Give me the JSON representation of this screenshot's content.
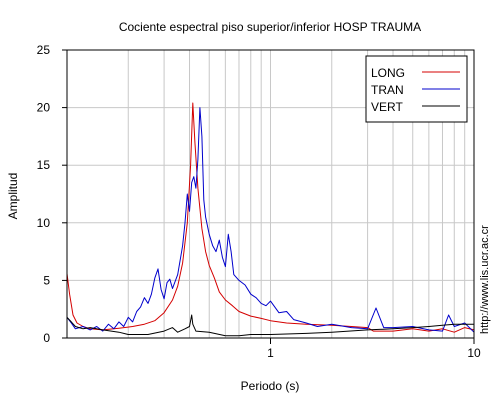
{
  "chart_data": {
    "type": "line",
    "title": "Cociente espectral piso superior/inferior  HOSP TRAUMA",
    "xlabel": "Periodo (s)",
    "ylabel": "Amplitud",
    "x_scale": "log",
    "xlim": [
      0.1,
      10
    ],
    "ylim": [
      0,
      25
    ],
    "grid": true,
    "legend_position": "top-right",
    "x_ticks": [
      {
        "value": 1,
        "label": "1"
      },
      {
        "value": 10,
        "label": "10"
      }
    ],
    "y_ticks": [
      {
        "value": 0,
        "label": "0"
      },
      {
        "value": 5,
        "label": "5"
      },
      {
        "value": 10,
        "label": "10"
      },
      {
        "value": 15,
        "label": "15"
      },
      {
        "value": 20,
        "label": "20"
      },
      {
        "value": 25,
        "label": "25"
      }
    ],
    "series": [
      {
        "name": "LONG",
        "color": "#d40000",
        "points": [
          [
            0.1,
            5.6
          ],
          [
            0.103,
            3.8
          ],
          [
            0.107,
            2.0
          ],
          [
            0.112,
            1.3
          ],
          [
            0.12,
            1.0
          ],
          [
            0.13,
            0.8
          ],
          [
            0.15,
            0.7
          ],
          [
            0.18,
            0.85
          ],
          [
            0.21,
            1.0
          ],
          [
            0.24,
            1.2
          ],
          [
            0.27,
            1.5
          ],
          [
            0.3,
            2.2
          ],
          [
            0.33,
            3.3
          ],
          [
            0.35,
            4.5
          ],
          [
            0.37,
            6.5
          ],
          [
            0.39,
            10.0
          ],
          [
            0.405,
            15.0
          ],
          [
            0.415,
            20.4
          ],
          [
            0.425,
            17.0
          ],
          [
            0.44,
            13.0
          ],
          [
            0.46,
            9.5
          ],
          [
            0.48,
            7.5
          ],
          [
            0.5,
            6.3
          ],
          [
            0.53,
            5.2
          ],
          [
            0.56,
            4.0
          ],
          [
            0.6,
            3.3
          ],
          [
            0.65,
            2.8
          ],
          [
            0.7,
            2.3
          ],
          [
            0.8,
            1.9
          ],
          [
            0.9,
            1.7
          ],
          [
            1.0,
            1.5
          ],
          [
            1.2,
            1.3
          ],
          [
            1.5,
            1.2
          ],
          [
            2.0,
            1.1
          ],
          [
            2.5,
            1.0
          ],
          [
            3.0,
            0.9
          ],
          [
            3.2,
            0.6
          ],
          [
            4.0,
            0.6
          ],
          [
            5.0,
            0.8
          ],
          [
            6.0,
            0.6
          ],
          [
            7.0,
            0.8
          ],
          [
            8.0,
            0.5
          ],
          [
            9.0,
            0.9
          ],
          [
            10.0,
            0.7
          ]
        ]
      },
      {
        "name": "TRAN",
        "color": "#0000cc",
        "points": [
          [
            0.1,
            1.8
          ],
          [
            0.105,
            1.3
          ],
          [
            0.11,
            0.8
          ],
          [
            0.12,
            1.0
          ],
          [
            0.13,
            0.7
          ],
          [
            0.14,
            1.0
          ],
          [
            0.15,
            0.6
          ],
          [
            0.16,
            1.2
          ],
          [
            0.17,
            0.8
          ],
          [
            0.18,
            1.4
          ],
          [
            0.19,
            1.0
          ],
          [
            0.2,
            1.8
          ],
          [
            0.21,
            1.4
          ],
          [
            0.22,
            2.3
          ],
          [
            0.23,
            2.7
          ],
          [
            0.24,
            3.5
          ],
          [
            0.25,
            3.0
          ],
          [
            0.26,
            3.8
          ],
          [
            0.27,
            5.2
          ],
          [
            0.28,
            6.0
          ],
          [
            0.29,
            4.2
          ],
          [
            0.3,
            3.4
          ],
          [
            0.31,
            4.8
          ],
          [
            0.32,
            5.1
          ],
          [
            0.33,
            4.3
          ],
          [
            0.35,
            5.5
          ],
          [
            0.37,
            8.0
          ],
          [
            0.38,
            10.0
          ],
          [
            0.39,
            12.5
          ],
          [
            0.4,
            11.0
          ],
          [
            0.41,
            13.5
          ],
          [
            0.42,
            14.0
          ],
          [
            0.43,
            13.0
          ],
          [
            0.44,
            15.5
          ],
          [
            0.45,
            20.0
          ],
          [
            0.46,
            17.5
          ],
          [
            0.47,
            12.0
          ],
          [
            0.48,
            10.5
          ],
          [
            0.5,
            9.0
          ],
          [
            0.52,
            8.0
          ],
          [
            0.54,
            7.5
          ],
          [
            0.56,
            8.5
          ],
          [
            0.58,
            7.0
          ],
          [
            0.6,
            6.2
          ],
          [
            0.62,
            9.0
          ],
          [
            0.64,
            7.5
          ],
          [
            0.66,
            5.5
          ],
          [
            0.7,
            5.0
          ],
          [
            0.75,
            4.6
          ],
          [
            0.8,
            3.8
          ],
          [
            0.85,
            3.5
          ],
          [
            0.9,
            3.0
          ],
          [
            0.95,
            2.8
          ],
          [
            1.0,
            3.2
          ],
          [
            1.1,
            2.2
          ],
          [
            1.2,
            2.3
          ],
          [
            1.3,
            1.6
          ],
          [
            1.5,
            1.3
          ],
          [
            1.7,
            1.0
          ],
          [
            2.0,
            1.2
          ],
          [
            2.5,
            0.9
          ],
          [
            3.0,
            0.8
          ],
          [
            3.3,
            2.6
          ],
          [
            3.6,
            0.9
          ],
          [
            4.0,
            0.9
          ],
          [
            5.0,
            1.0
          ],
          [
            6.0,
            0.7
          ],
          [
            7.0,
            0.6
          ],
          [
            7.5,
            2.0
          ],
          [
            8.0,
            1.0
          ],
          [
            9.0,
            1.3
          ],
          [
            10.0,
            0.5
          ]
        ]
      },
      {
        "name": "VERT",
        "color": "#000000",
        "points": [
          [
            0.1,
            1.8
          ],
          [
            0.105,
            1.4
          ],
          [
            0.11,
            1.0
          ],
          [
            0.12,
            0.8
          ],
          [
            0.13,
            0.9
          ],
          [
            0.15,
            0.7
          ],
          [
            0.18,
            0.5
          ],
          [
            0.2,
            0.3
          ],
          [
            0.25,
            0.3
          ],
          [
            0.3,
            0.6
          ],
          [
            0.33,
            0.9
          ],
          [
            0.35,
            0.5
          ],
          [
            0.38,
            0.8
          ],
          [
            0.4,
            1.0
          ],
          [
            0.41,
            2.0
          ],
          [
            0.415,
            1.2
          ],
          [
            0.43,
            0.6
          ],
          [
            0.5,
            0.5
          ],
          [
            0.6,
            0.2
          ],
          [
            0.7,
            0.2
          ],
          [
            0.8,
            0.3
          ],
          [
            1.0,
            0.3
          ],
          [
            1.5,
            0.4
          ],
          [
            2.0,
            0.5
          ],
          [
            3.0,
            0.7
          ],
          [
            4.0,
            0.8
          ],
          [
            5.0,
            0.9
          ],
          [
            6.0,
            1.0
          ],
          [
            7.0,
            1.1
          ],
          [
            8.0,
            1.2
          ],
          [
            10.0,
            1.2
          ]
        ]
      }
    ]
  },
  "watermark": "http://www.lis.ucr.ac.cr"
}
